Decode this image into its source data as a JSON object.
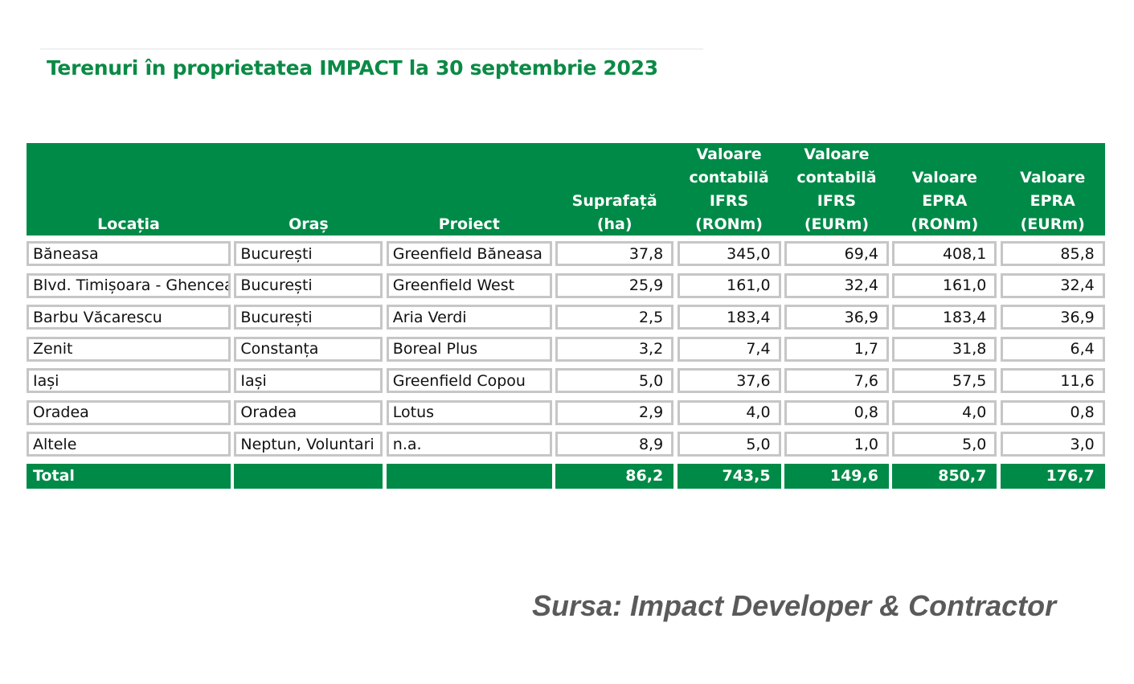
{
  "title": "Terenuri în proprietatea IMPACT la 30 septembrie 2023",
  "columns": [
    "Locația",
    "Oraș",
    "Proiect",
    "Suprafață\n(ha)",
    "Valoare\ncontabilă\nIFRS\n(RONm)",
    "Valoare\ncontabilă\nIFRS\n(EURm)",
    "Valoare\nEPRA\n(RONm)",
    "Valoare\nEPRA\n(EURm)"
  ],
  "rows": [
    [
      "Băneasa",
      "București",
      "Greenfield Băneasa",
      "37,8",
      "345,0",
      "69,4",
      "408,1",
      "85,8"
    ],
    [
      "Blvd. Timișoara - Ghencea",
      "București",
      "Greenfield West",
      "25,9",
      "161,0",
      "32,4",
      "161,0",
      "32,4"
    ],
    [
      "Barbu Văcarescu",
      "București",
      "Aria Verdi",
      "2,5",
      "183,4",
      "36,9",
      "183,4",
      "36,9"
    ],
    [
      "Zenit",
      "Constanța",
      "Boreal Plus",
      "3,2",
      "7,4",
      "1,7",
      "31,8",
      "6,4"
    ],
    [
      "Iași",
      "Iași",
      "Greenfield Copou",
      "5,0",
      "37,6",
      "7,6",
      "57,5",
      "11,6"
    ],
    [
      "Oradea",
      "Oradea",
      "Lotus",
      "2,9",
      "4,0",
      "0,8",
      "4,0",
      "0,8"
    ],
    [
      "Altele",
      "Neptun, Voluntari",
      "n.a.",
      "8,9",
      "5,0",
      "1,0",
      "5,0",
      "3,0"
    ]
  ],
  "total": [
    "Total",
    "",
    "",
    "86,2",
    "743,5",
    "149,6",
    "850,7",
    "176,7"
  ],
  "source": "Sursa: Impact Developer & Contractor",
  "colors": {
    "green": "#008a47",
    "border": "#c6c6c6"
  }
}
